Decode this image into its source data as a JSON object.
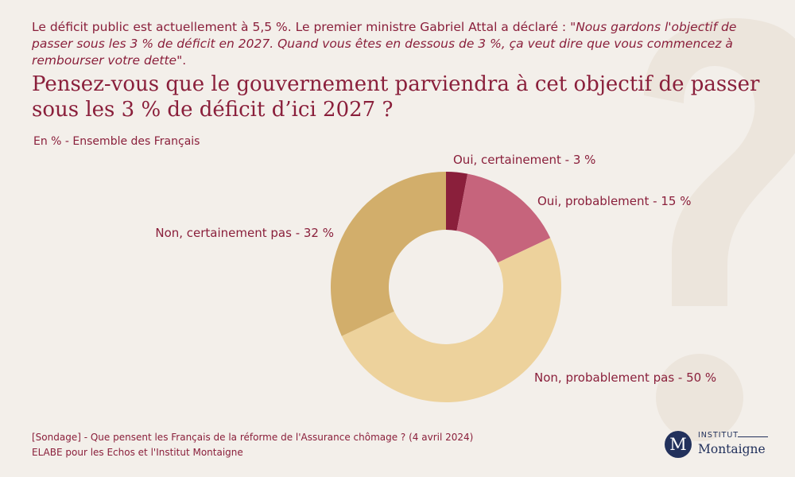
{
  "intro": {
    "lead": "Le déficit public est actuellement à 5,5 %. Le premier ministre Gabriel Attal a déclaré : \"",
    "quote": "Nous gardons l'objectif de passer sous les 3 % de déficit en 2027. Quand vous êtes en dessous de 3 %, ça veut dire que vous commencez à rembourser votre dette",
    "tail": "\"."
  },
  "question": "Pensez-vous que le gouvernement parviendra à cet objectif de passer sous les 3 % de déficit d’ici 2027 ?",
  "subtitle": "En % - Ensemble des Français",
  "chart_data": {
    "type": "pie",
    "subtype": "donut",
    "title": "",
    "slices": [
      {
        "label": "Oui, certainement - 3 %",
        "value": 3,
        "color": "#8a1f3b"
      },
      {
        "label": "Oui, probablement - 15 %",
        "value": 15,
        "color": "#c6647c"
      },
      {
        "label": "Non, probablement pas - 50 %",
        "value": 50,
        "color": "#edd29c"
      },
      {
        "label": "Non, certainement pas - 32 %",
        "value": 32,
        "color": "#d2ae6b"
      }
    ]
  },
  "footer": {
    "line1": "[Sondage] - Que pensent les Français de la réforme de l'Assurance chômage ? (4 avril 2024)",
    "line2": "ELABE pour les Echos et l'Institut Montaigne"
  },
  "logo": {
    "initial": "M",
    "top": "INSTITUT",
    "bottom": "Montaigne"
  },
  "colors": {
    "background": "#f3efea",
    "text": "#8a1f3b",
    "logo": "#22315c"
  }
}
